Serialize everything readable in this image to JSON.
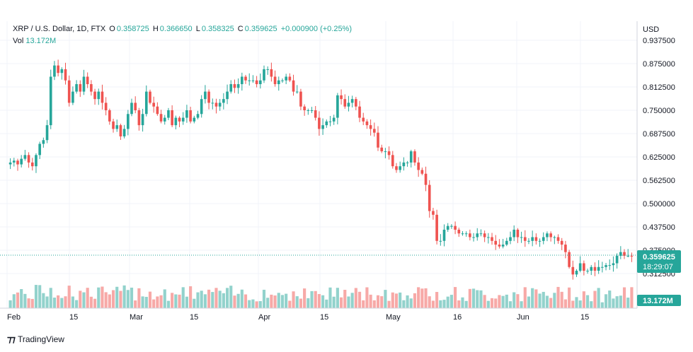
{
  "header": {
    "symbol": "XRP / U.S. Dollar, 1D, FTX",
    "open_label": "O",
    "open": "0.358725",
    "high_label": "H",
    "high": "0.366650",
    "low_label": "L",
    "low": "0.358325",
    "close_label": "C",
    "close": "0.359625",
    "change": "+0.000900 (+0.25%)",
    "vol_label": "Vol",
    "vol_value": "13.172M"
  },
  "branding": {
    "name": "TradingView"
  },
  "chart_data": {
    "type": "candlestick",
    "currency": "USD",
    "y_ticks": [
      "0.937500",
      "0.875000",
      "0.812500",
      "0.750000",
      "0.687500",
      "0.625000",
      "0.562500",
      "0.500000",
      "0.437500",
      "0.375000",
      "0.312500"
    ],
    "x_ticks": [
      "Feb",
      "15",
      "Mar",
      "15",
      "Apr",
      "15",
      "May",
      "16",
      "Jun",
      "15"
    ],
    "ylim": [
      0.3,
      0.95
    ],
    "price_badge": {
      "value": "0.359625",
      "countdown": "18:29:07"
    },
    "volume_badge": "13.172M",
    "colors": {
      "up": "#26a69a",
      "down": "#ef5350",
      "up_vol": "#92d2cc",
      "down_vol": "#f7a9a7"
    },
    "closes": [
      0.61,
      0.615,
      0.605,
      0.62,
      0.63,
      0.61,
      0.6,
      0.63,
      0.66,
      0.67,
      0.71,
      0.84,
      0.87,
      0.85,
      0.86,
      0.83,
      0.77,
      0.8,
      0.82,
      0.8,
      0.84,
      0.82,
      0.8,
      0.78,
      0.8,
      0.77,
      0.75,
      0.72,
      0.7,
      0.71,
      0.68,
      0.7,
      0.74,
      0.77,
      0.75,
      0.71,
      0.74,
      0.8,
      0.77,
      0.76,
      0.74,
      0.72,
      0.73,
      0.75,
      0.71,
      0.73,
      0.72,
      0.73,
      0.75,
      0.72,
      0.73,
      0.74,
      0.78,
      0.8,
      0.77,
      0.77,
      0.76,
      0.77,
      0.78,
      0.8,
      0.82,
      0.81,
      0.82,
      0.84,
      0.83,
      0.83,
      0.83,
      0.82,
      0.83,
      0.86,
      0.86,
      0.84,
      0.82,
      0.83,
      0.83,
      0.84,
      0.83,
      0.8,
      0.8,
      0.76,
      0.75,
      0.75,
      0.75,
      0.73,
      0.7,
      0.71,
      0.72,
      0.72,
      0.73,
      0.79,
      0.78,
      0.76,
      0.77,
      0.78,
      0.76,
      0.73,
      0.72,
      0.71,
      0.7,
      0.69,
      0.65,
      0.64,
      0.64,
      0.63,
      0.6,
      0.59,
      0.6,
      0.61,
      0.61,
      0.64,
      0.61,
      0.59,
      0.58,
      0.55,
      0.48,
      0.47,
      0.4,
      0.4,
      0.43,
      0.44,
      0.44,
      0.43,
      0.42,
      0.42,
      0.42,
      0.41,
      0.41,
      0.42,
      0.42,
      0.41,
      0.41,
      0.4,
      0.39,
      0.385,
      0.39,
      0.4,
      0.41,
      0.43,
      0.41,
      0.41,
      0.4,
      0.4,
      0.41,
      0.4,
      0.4,
      0.41,
      0.42,
      0.41,
      0.41,
      0.4,
      0.39,
      0.37,
      0.33,
      0.31,
      0.32,
      0.34,
      0.32,
      0.32,
      0.33,
      0.32,
      0.33,
      0.33,
      0.335,
      0.335,
      0.34,
      0.36,
      0.37,
      0.36,
      0.36,
      0.3596
    ]
  }
}
